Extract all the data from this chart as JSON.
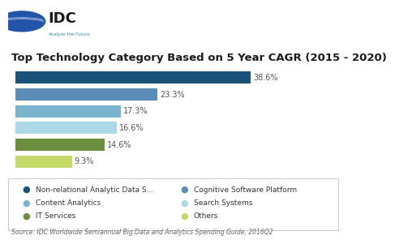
{
  "title": "Top Technology Category Based on 5 Year CAGR (2015 - 2020)",
  "values": [
    38.6,
    23.3,
    17.3,
    16.6,
    14.6,
    9.3
  ],
  "labels": [
    "38.6%",
    "23.3%",
    "17.3%",
    "16.6%",
    "14.6%",
    "9.3%"
  ],
  "colors": [
    "#1b527a",
    "#5b8db8",
    "#7ab3cc",
    "#add8e6",
    "#6b8e3e",
    "#c5d96a"
  ],
  "legend_labels": [
    "Non-relational Analytic Data S...",
    "Cognitive Software Platform",
    "Content Analytics",
    "Search Systems",
    "IT Services",
    "Others"
  ],
  "legend_colors": [
    "#1b527a",
    "#5b8db8",
    "#7ab3cc",
    "#add8e6",
    "#6b8e3e",
    "#c5d96a"
  ],
  "source_text": "Source: IDC Worldwide Semiannual Big Data and Analytics Spending Guide, 2016Q2",
  "title_fontsize": 9.5,
  "bar_fontsize": 7,
  "legend_fontsize": 6.5,
  "source_fontsize": 5.5,
  "background_color": "#ffffff",
  "xlim": [
    0,
    46
  ],
  "idc_text": "IDC",
  "idc_sub": "Analyze the Future",
  "legend_box_color": "#e8e8e8",
  "legend_box_linecolor": "#cccccc"
}
